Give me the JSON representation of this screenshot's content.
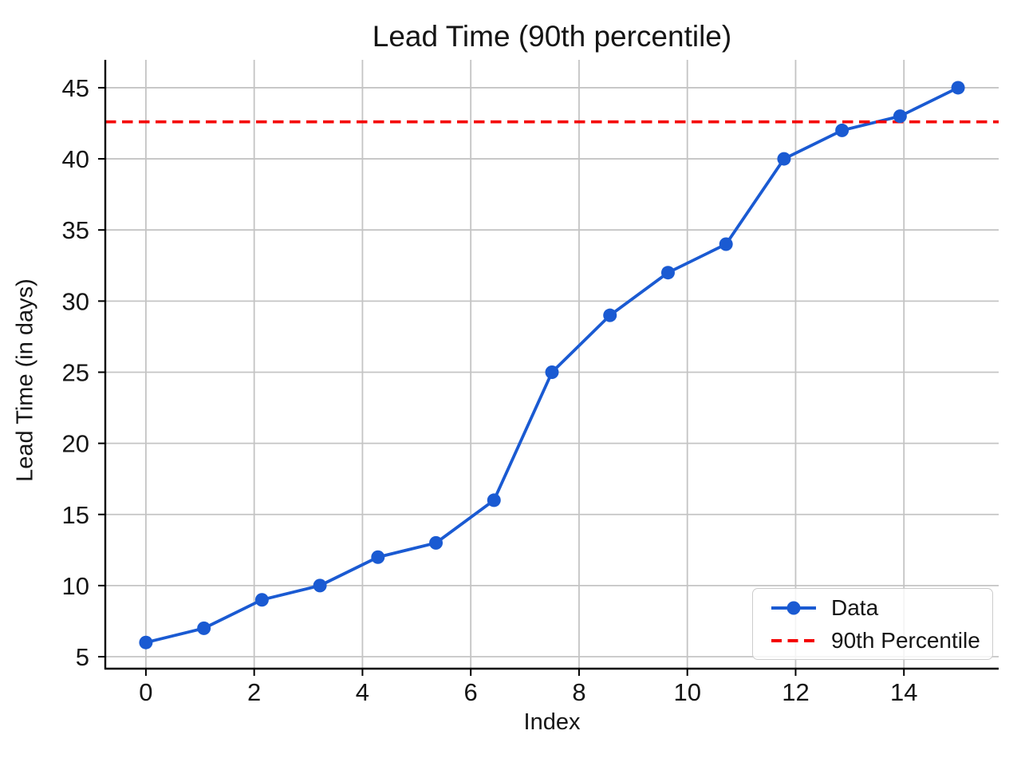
{
  "figure": {
    "background": "#ffffff"
  },
  "chart_data": {
    "type": "line",
    "title": "Lead Time (90th percentile)",
    "xlabel": "Index",
    "ylabel": "Lead Time (in days)",
    "x": [
      0,
      1.0714,
      2.1429,
      3.2143,
      4.2857,
      5.3571,
      6.4286,
      7.5,
      8.5714,
      9.6429,
      10.7143,
      11.7857,
      12.8571,
      13.9286,
      15
    ],
    "y": [
      6,
      7,
      9,
      10,
      12,
      13,
      16,
      25,
      29,
      32,
      34,
      40,
      42,
      43,
      45
    ],
    "series_name": "Data",
    "percentile": {
      "label": "90th Percentile",
      "value": 42.6
    },
    "xticks": [
      0,
      2,
      4,
      6,
      8,
      10,
      12,
      14
    ],
    "yticks": [
      5,
      10,
      15,
      20,
      25,
      30,
      35,
      40,
      45
    ],
    "xlim": [
      -0.75,
      15.75
    ],
    "ylim": [
      4.16,
      46.96
    ],
    "grid": true,
    "legend_position": "lower right",
    "colors": {
      "series": "#1a5ad2",
      "percentile": "#f40000",
      "grid": "#c4c4c4",
      "spine": "#000000",
      "text": "#151515",
      "legend_border": "#cccccc"
    }
  }
}
